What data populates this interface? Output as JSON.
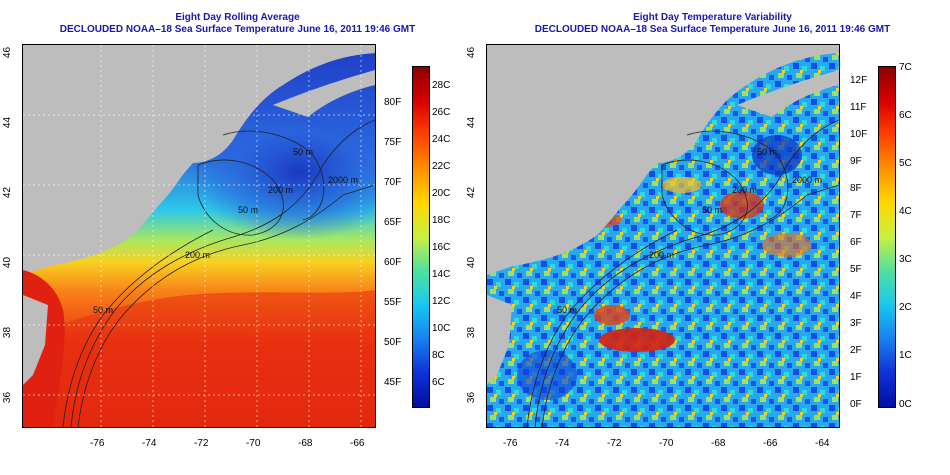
{
  "left_panel": {
    "title": "Eight Day Rolling Average",
    "subtitle": "DECLOUDED NOAA–18 Sea Surface Temperature June 16, 2011 19:46 GMT",
    "colorbar_celsius": [
      "28C",
      "26C",
      "24C",
      "22C",
      "20C",
      "18C",
      "16C",
      "14C",
      "12C",
      "10C",
      "8C",
      "6C"
    ],
    "colorbar_fahrenheit": [
      "80F",
      "75F",
      "70F",
      "65F",
      "60F",
      "55F",
      "50F",
      "45F"
    ],
    "contour_labels": [
      "2000 m",
      "200 m",
      "200 m",
      "50 m",
      "50 m",
      "50 m",
      "200 m"
    ]
  },
  "right_panel": {
    "title": "Eight Day Temperature Variability",
    "subtitle": "DECLOUDED NOAA–18 Sea Surface Temperature June 16, 2011 19:46 GMT",
    "colorbar_fahrenheit": [
      "12F",
      "11F",
      "10F",
      "9F",
      "8F",
      "7F",
      "6F",
      "5F",
      "4F",
      "3F",
      "2F",
      "1F",
      "0F"
    ],
    "colorbar_celsius": [
      "7C",
      "6C",
      "5C",
      "4C",
      "3C",
      "2C",
      "1C",
      "0C"
    ],
    "contour_labels": [
      "2000 m",
      "200 m",
      "200 m",
      "50 m",
      "50 m",
      "50 m",
      "200 m"
    ]
  },
  "axes": {
    "x_ticks": [
      "-76",
      "-74",
      "-72",
      "-70",
      "-68",
      "-66",
      "-64"
    ],
    "y_ticks": [
      "46",
      "44",
      "42",
      "40",
      "38",
      "36"
    ]
  },
  "colors": {
    "title": "#1818b0",
    "land": "#bdbdbd",
    "grid": "#ffffff"
  }
}
